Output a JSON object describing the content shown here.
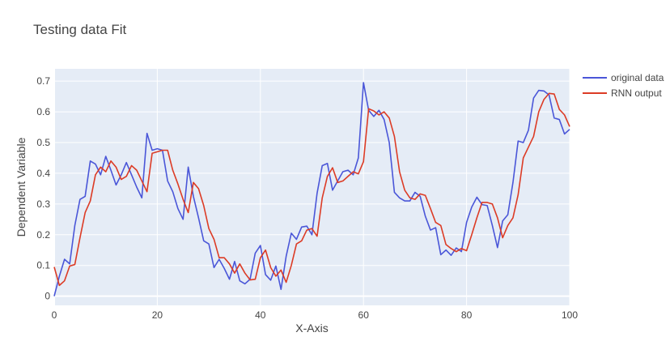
{
  "chart_data": {
    "type": "line",
    "title": "Testing data Fit",
    "xlabel": "X-Axis",
    "ylabel": "Dependent Variable",
    "xlim": [
      0,
      100
    ],
    "ylim": [
      -0.03,
      0.74
    ],
    "x_ticks": [
      0,
      20,
      40,
      60,
      80,
      100
    ],
    "y_ticks": [
      0,
      0.1,
      0.2,
      0.3,
      0.4,
      0.5,
      0.6,
      0.7
    ],
    "x_tick_labels": [
      "0",
      "20",
      "40",
      "60",
      "80",
      "100"
    ],
    "y_tick_labels": [
      "0",
      "0.1",
      "0.2",
      "0.3",
      "0.4",
      "0.5",
      "0.6",
      "0.7"
    ],
    "grid": true,
    "legend_position": "top-right",
    "series": [
      {
        "name": "original data",
        "color": "#4a56d8",
        "values": [
          0.0,
          0.065,
          0.12,
          0.105,
          0.23,
          0.315,
          0.325,
          0.44,
          0.43,
          0.395,
          0.455,
          0.41,
          0.362,
          0.395,
          0.435,
          0.395,
          0.355,
          0.32,
          0.53,
          0.475,
          0.48,
          0.475,
          0.375,
          0.34,
          0.285,
          0.25,
          0.42,
          0.325,
          0.255,
          0.18,
          0.17,
          0.093,
          0.12,
          0.09,
          0.055,
          0.113,
          0.05,
          0.04,
          0.055,
          0.14,
          0.165,
          0.07,
          0.052,
          0.098,
          0.022,
          0.13,
          0.205,
          0.185,
          0.225,
          0.228,
          0.2,
          0.335,
          0.425,
          0.432,
          0.345,
          0.375,
          0.405,
          0.41,
          0.395,
          0.45,
          0.695,
          0.605,
          0.585,
          0.605,
          0.575,
          0.5,
          0.338,
          0.32,
          0.31,
          0.31,
          0.338,
          0.325,
          0.26,
          0.215,
          0.223,
          0.135,
          0.15,
          0.133,
          0.157,
          0.145,
          0.24,
          0.29,
          0.322,
          0.298,
          0.295,
          0.23,
          0.158,
          0.245,
          0.265,
          0.37,
          0.505,
          0.5,
          0.54,
          0.645,
          0.67,
          0.668,
          0.655,
          0.58,
          0.575,
          0.528,
          0.543
        ]
      },
      {
        "name": "RNN output",
        "color": "#dc3b25",
        "values": [
          0.095,
          0.035,
          0.05,
          0.098,
          0.103,
          0.19,
          0.272,
          0.31,
          0.395,
          0.42,
          0.405,
          0.44,
          0.42,
          0.38,
          0.39,
          0.425,
          0.41,
          0.375,
          0.34,
          0.465,
          0.47,
          0.475,
          0.475,
          0.41,
          0.365,
          0.315,
          0.272,
          0.37,
          0.35,
          0.295,
          0.22,
          0.185,
          0.125,
          0.125,
          0.105,
          0.075,
          0.105,
          0.075,
          0.053,
          0.055,
          0.125,
          0.15,
          0.093,
          0.065,
          0.085,
          0.045,
          0.1,
          0.17,
          0.18,
          0.215,
          0.22,
          0.195,
          0.32,
          0.39,
          0.418,
          0.37,
          0.375,
          0.39,
          0.405,
          0.398,
          0.438,
          0.61,
          0.603,
          0.59,
          0.6,
          0.58,
          0.52,
          0.405,
          0.345,
          0.32,
          0.315,
          0.333,
          0.328,
          0.285,
          0.24,
          0.23,
          0.168,
          0.155,
          0.145,
          0.155,
          0.148,
          0.2,
          0.255,
          0.305,
          0.305,
          0.3,
          0.255,
          0.19,
          0.23,
          0.255,
          0.33,
          0.45,
          0.485,
          0.52,
          0.6,
          0.64,
          0.66,
          0.658,
          0.608,
          0.59,
          0.552
        ]
      }
    ]
  }
}
